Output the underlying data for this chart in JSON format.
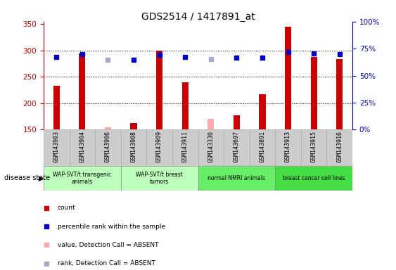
{
  "title": "GDS2514 / 1417891_at",
  "samples": [
    "GSM143903",
    "GSM143904",
    "GSM143906",
    "GSM143908",
    "GSM143909",
    "GSM143911",
    "GSM143330",
    "GSM143697",
    "GSM143891",
    "GSM143913",
    "GSM143915",
    "GSM143916"
  ],
  "count_values": [
    233,
    295,
    null,
    163,
    300,
    240,
    null,
    177,
    217,
    345,
    288,
    284
  ],
  "count_absent": [
    null,
    null,
    155,
    null,
    null,
    null,
    170,
    null,
    null,
    null,
    null,
    null
  ],
  "rank_pct": [
    67.5,
    70.0,
    null,
    64.5,
    69.5,
    67.5,
    null,
    66.5,
    66.5,
    71.5,
    70.5,
    70.0
  ],
  "rank_pct_absent": [
    null,
    null,
    64.5,
    null,
    null,
    null,
    65.5,
    null,
    null,
    null,
    null,
    null
  ],
  "ylim_left": [
    150,
    355
  ],
  "ylim_right": [
    0,
    100
  ],
  "yticks_left": [
    150,
    200,
    250,
    300,
    350
  ],
  "yticks_right": [
    0,
    25,
    50,
    75,
    100
  ],
  "left_axis_color": "#cc0000",
  "right_axis_color": "#0000cc",
  "bar_color_present": "#cc0000",
  "bar_color_absent": "#ffaaaa",
  "dot_color_present": "#0000cc",
  "dot_color_absent": "#aaaacc",
  "grid_color": "#000000",
  "background_color": "#ffffff",
  "bar_width": 0.25,
  "group_configs": [
    {
      "indices": [
        0,
        1,
        2
      ],
      "label": "WAP-SVT/t transgenic\nanimals",
      "color": "#bbffbb"
    },
    {
      "indices": [
        3,
        4,
        5
      ],
      "label": "WAP-SVT/t breast\ntumors",
      "color": "#bbffbb"
    },
    {
      "indices": [
        6,
        7,
        8
      ],
      "label": "normal NMRI animals",
      "color": "#66ee66"
    },
    {
      "indices": [
        9,
        10,
        11
      ],
      "label": "breast cancer cell lines",
      "color": "#44dd44"
    }
  ],
  "legend_items": [
    {
      "color": "#cc0000",
      "label": "count"
    },
    {
      "color": "#0000cc",
      "label": "percentile rank within the sample"
    },
    {
      "color": "#ffaaaa",
      "label": "value, Detection Call = ABSENT"
    },
    {
      "color": "#aaaacc",
      "label": "rank, Detection Call = ABSENT"
    }
  ]
}
